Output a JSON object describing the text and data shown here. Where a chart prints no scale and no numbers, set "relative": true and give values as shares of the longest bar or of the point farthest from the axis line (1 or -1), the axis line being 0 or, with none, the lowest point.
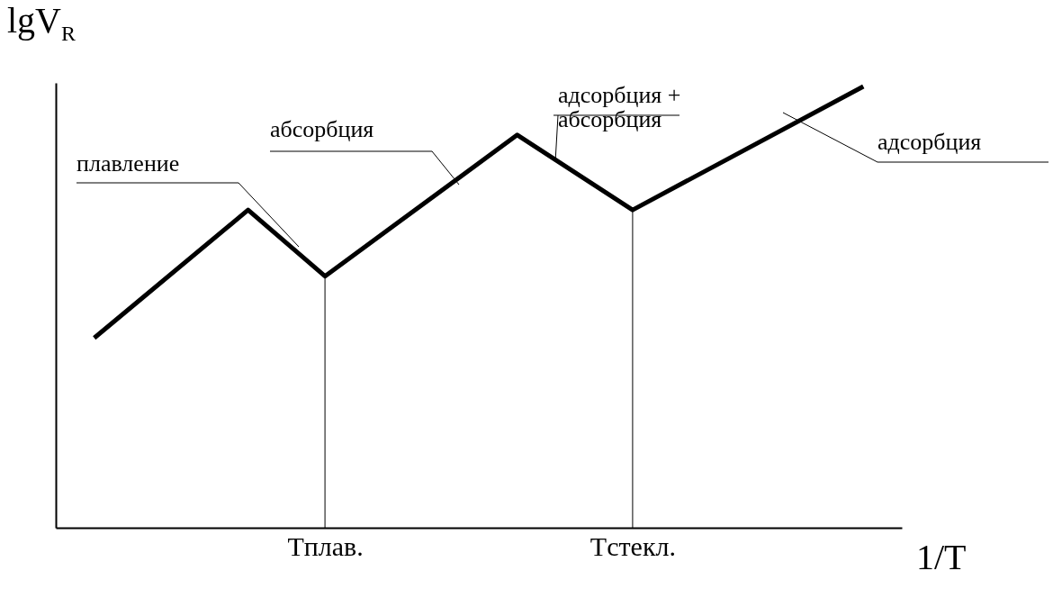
{
  "chart_data": {
    "type": "line",
    "relative": true,
    "xlabel": "1/T",
    "ylabel": "lgV$_{R}$",
    "categories": [
      null,
      null,
      null,
      null,
      null,
      null,
      "Tплав.",
      null,
      null,
      null,
      null,
      null,
      null,
      null,
      "Tстекл.",
      null,
      null,
      null,
      null,
      null,
      null
    ],
    "series": [
      {
        "color": "#000000",
        "values": [
          0.43,
          null,
          null,
          null,
          0.72,
          null,
          0.57,
          null,
          null,
          null,
          null,
          0.89,
          null,
          null,
          0.72,
          null,
          null,
          null,
          null,
          null,
          1.0
        ]
      }
    ],
    "annotations": [
      "плавление",
      "абсорбция",
      "адсорбция +\nабсорбция",
      "адсорбция"
    ],
    "ref_lines": [
      {
        "axis": "x",
        "value": "Tплав."
      },
      {
        "axis": "x",
        "value": "Tстекл."
      }
    ],
    "grid": false,
    "legend": false,
    "marker": "none",
    "line_style": "solid"
  }
}
